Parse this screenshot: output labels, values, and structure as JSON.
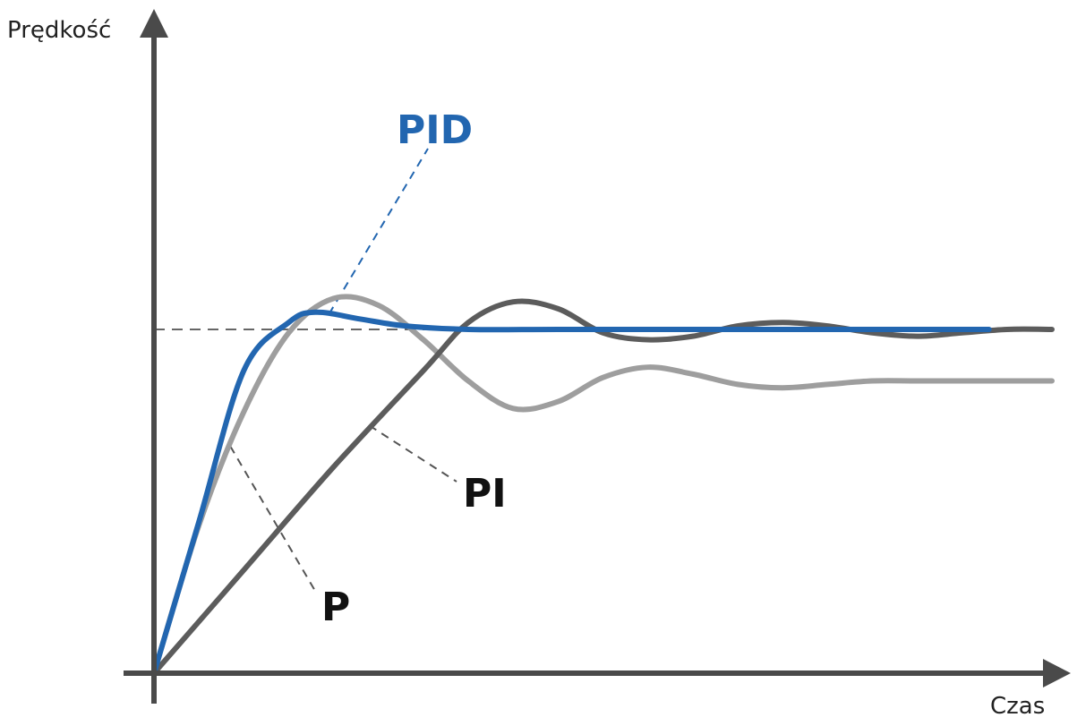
{
  "chart_data": {
    "type": "line",
    "ylabel": "Prędkość",
    "xlabel": "Czas",
    "setpoint": 1.0,
    "xlim": [
      0,
      10
    ],
    "ylim": [
      0,
      1.38
    ],
    "grid": false,
    "legend": "inline labels",
    "colors": {
      "P": "#9e9e9e",
      "PI": "#5c5c5c",
      "PID": "#2266b0",
      "axis": "#4a4a4a",
      "setpoint": "#666666",
      "leader": "#555555"
    },
    "series": [
      {
        "name": "P",
        "x": [
          0,
          0.5,
          1.0,
          1.5,
          2.0,
          2.5,
          3.0,
          3.5,
          4.0,
          4.5,
          5.0,
          5.5,
          6.0,
          6.5,
          7.0,
          7.5,
          8.0,
          8.5,
          9.0,
          9.5,
          10.0
        ],
        "y": [
          0,
          0.43,
          0.76,
          0.99,
          1.09,
          1.07,
          0.97,
          0.85,
          0.77,
          0.79,
          0.86,
          0.89,
          0.87,
          0.84,
          0.83,
          0.84,
          0.85,
          0.85,
          0.85,
          0.85,
          0.85
        ]
      },
      {
        "name": "PI",
        "x": [
          0,
          1.0,
          2.0,
          3.0,
          3.5,
          4.0,
          4.5,
          5.0,
          5.5,
          6.0,
          6.5,
          7.0,
          7.5,
          8.0,
          8.5,
          9.0,
          9.5,
          10.0
        ],
        "y": [
          0,
          0.3,
          0.6,
          0.88,
          1.02,
          1.08,
          1.06,
          0.99,
          0.97,
          0.98,
          1.01,
          1.02,
          1.01,
          0.99,
          0.98,
          0.99,
          1.0,
          1.0
        ]
      },
      {
        "name": "PID",
        "x": [
          0,
          0.5,
          1.0,
          1.5,
          1.8,
          2.3,
          2.8,
          3.5,
          4.5,
          6.0,
          8.0,
          9.3
        ],
        "y": [
          0,
          0.44,
          0.88,
          1.02,
          1.05,
          1.03,
          1.01,
          1.0,
          1.0,
          1.0,
          1.0,
          1.0
        ]
      }
    ],
    "annotations": [
      {
        "text": "PID",
        "series": "PID"
      },
      {
        "text": "PI",
        "series": "PI"
      },
      {
        "text": "P",
        "series": "P"
      }
    ]
  }
}
